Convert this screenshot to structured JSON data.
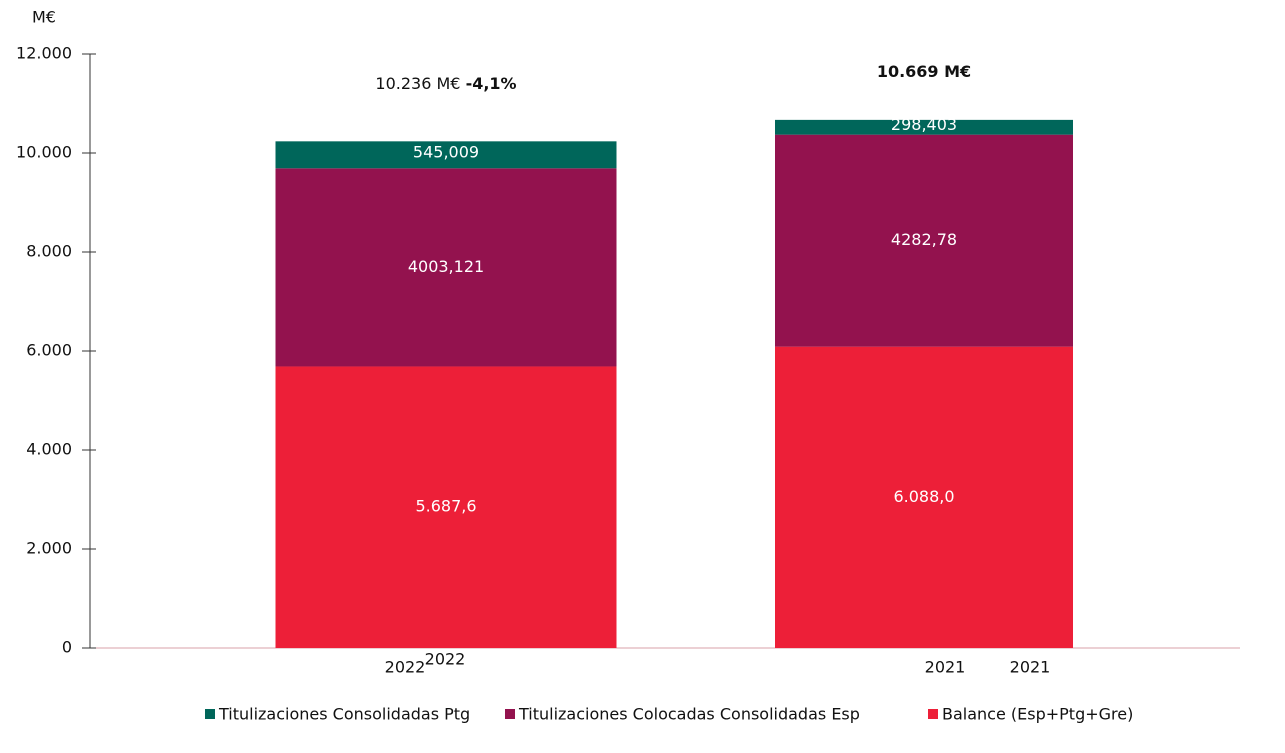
{
  "chart_data": {
    "type": "stacked_bar",
    "y_axis_label": "M€",
    "categories": [
      "2022",
      "2021"
    ],
    "secondary_category_labels": [
      "2022",
      "2021"
    ],
    "series": [
      {
        "name": "Balance (Esp+Ptg+Gre)",
        "color": "#ed1f38",
        "values": [
          5687.6,
          6088.0
        ],
        "value_labels": [
          "5.687,6",
          "6.088,0"
        ]
      },
      {
        "name": "Titulizaciones Colocadas Consolidadas Esp",
        "color": "#93124e",
        "values": [
          4003.121,
          4282.78
        ],
        "value_labels": [
          "4003,121",
          "4282,78"
        ]
      },
      {
        "name": "Titulizaciones Consolidadas Ptg",
        "color": "#00665a",
        "values": [
          545.009,
          298.403
        ],
        "value_labels": [
          "545,009",
          "298,403"
        ]
      }
    ],
    "annotations": [
      {
        "text": "10.236 M€",
        "bold_text": "-4,1%"
      },
      {
        "bold_text": "10.669 M€"
      }
    ],
    "ylim": [
      0,
      12000
    ],
    "yticks": [
      {
        "value": 0,
        "label": "0"
      },
      {
        "value": 2000,
        "label": "2.000"
      },
      {
        "value": 4000,
        "label": "4.000"
      },
      {
        "value": 6000,
        "label": "6.000"
      },
      {
        "value": 8000,
        "label": "8.000"
      },
      {
        "value": 10000,
        "label": "10.000"
      },
      {
        "value": 12000,
        "label": "12.000"
      }
    ],
    "legend": "bottom"
  }
}
